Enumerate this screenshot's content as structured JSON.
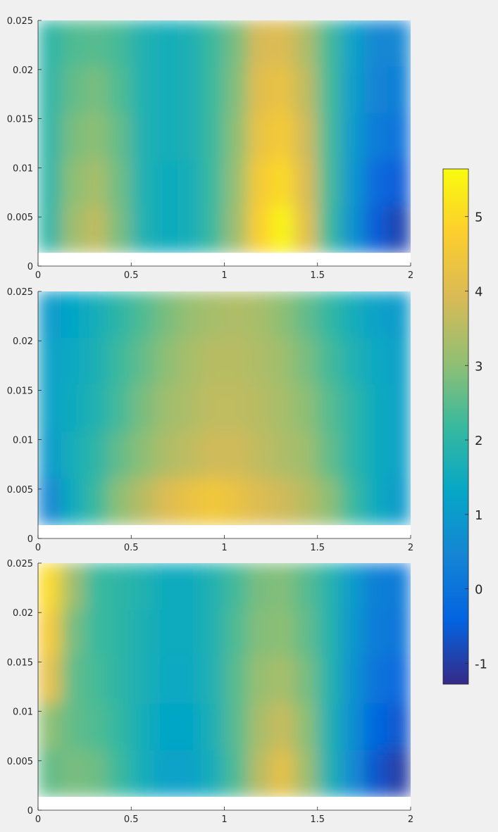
{
  "chart_data": [
    {
      "type": "heatmap",
      "x_edges": [
        0,
        0.125,
        0.25,
        0.375,
        0.5,
        0.625,
        0.75,
        0.875,
        1,
        1.125,
        1.25,
        1.375,
        1.5,
        1.625,
        1.75,
        1.875,
        2
      ],
      "y_edges": [
        0.00135,
        0.0061,
        0.0108,
        0.0156,
        0.0203,
        0.025
      ],
      "values": [
        [
          2.0,
          3.2,
          3.6,
          2.8,
          1.8,
          1.5,
          1.6,
          2.2,
          3.2,
          4.8,
          5.5,
          4.2,
          2.2,
          0.8,
          -0.5,
          -0.9
        ],
        [
          2.0,
          3.0,
          3.3,
          2.7,
          1.8,
          1.5,
          1.6,
          2.2,
          3.1,
          4.6,
          5.0,
          4.0,
          2.3,
          0.9,
          -0.2,
          -0.5
        ],
        [
          2.0,
          2.8,
          3.0,
          2.6,
          1.8,
          1.6,
          1.7,
          2.2,
          3.0,
          4.3,
          4.6,
          3.8,
          2.3,
          1.0,
          0.2,
          0.0
        ],
        [
          2.0,
          2.6,
          2.8,
          2.4,
          1.8,
          1.6,
          1.7,
          2.2,
          2.9,
          4.1,
          4.3,
          3.6,
          2.3,
          1.1,
          0.4,
          0.3
        ],
        [
          2.0,
          2.4,
          2.5,
          2.3,
          1.8,
          1.6,
          1.7,
          2.2,
          2.8,
          3.9,
          4.0,
          3.4,
          2.3,
          1.2,
          0.5,
          0.5
        ]
      ],
      "xlim": [
        0,
        2
      ],
      "ylim": [
        0,
        0.025
      ],
      "xticks": [
        0,
        0.5,
        1,
        1.5,
        2
      ],
      "yticks": [
        0,
        0.005,
        0.01,
        0.015,
        0.02,
        0.025
      ]
    },
    {
      "type": "heatmap",
      "x_edges": [
        0,
        0.125,
        0.25,
        0.375,
        0.5,
        0.625,
        0.75,
        0.875,
        1,
        1.125,
        1.25,
        1.375,
        1.5,
        1.625,
        1.75,
        1.875,
        2
      ],
      "y_edges": [
        0.00135,
        0.0061,
        0.0108,
        0.0156,
        0.0203,
        0.025
      ],
      "values": [
        [
          0.5,
          1.5,
          2.2,
          3.0,
          3.5,
          4.0,
          4.3,
          4.5,
          4.3,
          4.0,
          3.8,
          3.5,
          3.0,
          2.2,
          1.5,
          1.0
        ],
        [
          1.0,
          1.6,
          2.0,
          2.6,
          3.0,
          3.4,
          3.6,
          3.8,
          3.8,
          3.6,
          3.4,
          3.2,
          2.6,
          2.0,
          1.5,
          1.2
        ],
        [
          1.2,
          1.5,
          1.8,
          2.3,
          2.8,
          3.2,
          3.4,
          3.6,
          3.6,
          3.5,
          3.3,
          3.0,
          2.5,
          2.0,
          1.5,
          1.2
        ],
        [
          1.2,
          1.4,
          1.7,
          2.2,
          2.6,
          3.0,
          3.3,
          3.5,
          3.5,
          3.4,
          3.2,
          2.8,
          2.3,
          1.8,
          1.4,
          1.2
        ],
        [
          1.0,
          1.3,
          1.6,
          2.0,
          2.4,
          2.8,
          3.1,
          3.3,
          3.4,
          3.3,
          3.0,
          2.6,
          2.1,
          1.6,
          1.2,
          1.0
        ]
      ],
      "xlim": [
        0,
        2
      ],
      "ylim": [
        0,
        0.025
      ],
      "xticks": [
        0,
        0.5,
        1,
        1.5,
        2
      ],
      "yticks": [
        0,
        0.005,
        0.01,
        0.015,
        0.02,
        0.025
      ]
    },
    {
      "type": "heatmap",
      "x_edges": [
        0,
        0.125,
        0.25,
        0.375,
        0.5,
        0.625,
        0.75,
        0.875,
        1,
        1.125,
        1.25,
        1.375,
        1.5,
        1.625,
        1.75,
        1.875,
        2
      ],
      "y_edges": [
        0.00135,
        0.0061,
        0.0108,
        0.0156,
        0.0203,
        0.025
      ],
      "values": [
        [
          2.6,
          2.8,
          2.7,
          2.2,
          1.6,
          1.2,
          1.2,
          1.6,
          2.4,
          3.5,
          4.2,
          3.2,
          1.8,
          0.6,
          -0.6,
          -1.0
        ],
        [
          3.0,
          2.6,
          2.4,
          2.1,
          1.6,
          1.3,
          1.3,
          1.7,
          2.5,
          3.3,
          3.7,
          3.0,
          1.8,
          0.7,
          -0.3,
          -0.6
        ],
        [
          4.2,
          2.6,
          2.3,
          2.0,
          1.7,
          1.4,
          1.4,
          1.8,
          2.5,
          3.1,
          3.3,
          2.8,
          1.9,
          0.8,
          0.0,
          -0.2
        ],
        [
          4.6,
          2.8,
          2.2,
          2.0,
          1.7,
          1.5,
          1.5,
          1.8,
          2.4,
          2.9,
          3.0,
          2.6,
          1.9,
          0.9,
          0.2,
          0.1
        ],
        [
          5.0,
          3.2,
          2.2,
          2.0,
          1.8,
          1.5,
          1.5,
          1.8,
          2.3,
          2.8,
          2.9,
          2.5,
          1.9,
          1.0,
          0.3,
          0.2
        ]
      ],
      "xlim": [
        0,
        2
      ],
      "ylim": [
        0,
        0.025
      ],
      "xticks": [
        0,
        0.5,
        1,
        1.5,
        2
      ],
      "yticks": [
        0,
        0.005,
        0.01,
        0.015,
        0.02,
        0.025
      ]
    },
    {
      "type": "colorbar",
      "clim": [
        -1.28,
        5.64
      ],
      "ticks": [
        -1,
        0,
        1,
        2,
        3,
        4,
        5
      ],
      "colormap": [
        "#352a87",
        "#0363e1",
        "#1485d4",
        "#06a7c6",
        "#38b99e",
        "#92bf73",
        "#d9ba56",
        "#fcce2e",
        "#f9fb0e"
      ]
    }
  ]
}
